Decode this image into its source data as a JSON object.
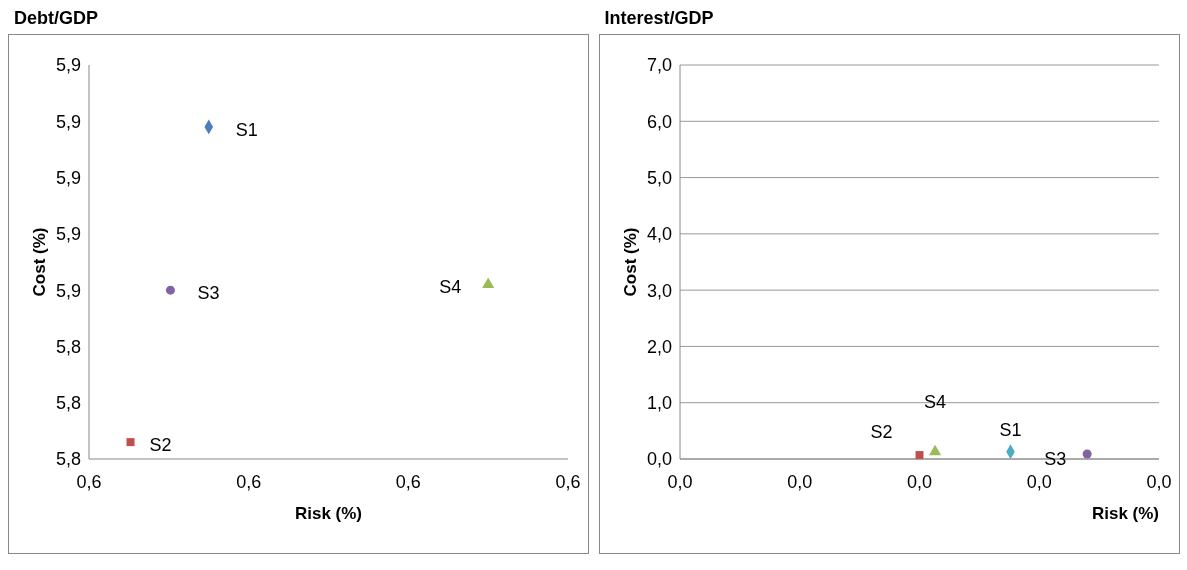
{
  "chart_data": [
    {
      "type": "scatter",
      "title": "Debt/GDP",
      "xlabel": "Risk (%)",
      "ylabel": "Cost (%)",
      "xlim": [
        0.6,
        0.63
      ],
      "ylim": [
        5.82,
        5.89
      ],
      "xticks": [
        {
          "value": 0.6,
          "label": "0,6"
        },
        {
          "value": 0.61,
          "label": "0,6"
        },
        {
          "value": 0.62,
          "label": "0,6"
        },
        {
          "value": 0.63,
          "label": "0,6"
        }
      ],
      "yticks": [
        {
          "value": 5.82,
          "label": "5,8"
        },
        {
          "value": 5.83,
          "label": "5,8"
        },
        {
          "value": 5.84,
          "label": "5,8"
        },
        {
          "value": 5.85,
          "label": "5,9"
        },
        {
          "value": 5.86,
          "label": "5,9"
        },
        {
          "value": 5.87,
          "label": "5,9"
        },
        {
          "value": 5.88,
          "label": "5,9"
        },
        {
          "value": 5.89,
          "label": "5,9"
        }
      ],
      "series": [
        {
          "name": "S1",
          "color": "#4a7ebb",
          "marker": "diamond",
          "x": [
            0.6075
          ],
          "values": [
            5.879
          ]
        },
        {
          "name": "S2",
          "color": "#c0504d",
          "marker": "square",
          "x": [
            0.6026
          ],
          "values": [
            5.823
          ]
        },
        {
          "name": "S3",
          "color": "#8064a2",
          "marker": "circle",
          "x": [
            0.6051
          ],
          "values": [
            5.85
          ]
        },
        {
          "name": "S4",
          "color": "#9bbb59",
          "marker": "triangle",
          "x": [
            0.625
          ],
          "values": [
            5.851
          ]
        }
      ]
    },
    {
      "type": "scatter",
      "title": "Interest/GDP",
      "xlabel": "Risk (%)",
      "ylabel": "Cost (%)",
      "xlim": [
        0,
        0.04
      ],
      "ylim": [
        0,
        7
      ],
      "grid": "y",
      "xticks": [
        {
          "value": 0,
          "label": "0,0"
        },
        {
          "value": 0.01,
          "label": "0,0"
        },
        {
          "value": 0.02,
          "label": "0,0"
        },
        {
          "value": 0.03,
          "label": "0,0"
        },
        {
          "value": 0.04,
          "label": "0,0"
        }
      ],
      "yticks": [
        {
          "value": 0,
          "label": "0,0"
        },
        {
          "value": 1,
          "label": "1,0"
        },
        {
          "value": 2,
          "label": "2,0"
        },
        {
          "value": 3,
          "label": "3,0"
        },
        {
          "value": 4,
          "label": "4,0"
        },
        {
          "value": 5,
          "label": "5,0"
        },
        {
          "value": 6,
          "label": "6,0"
        },
        {
          "value": 7,
          "label": "7,0"
        }
      ],
      "series": [
        {
          "name": "S1",
          "color": "#4bacc6",
          "marker": "diamond",
          "x": [
            0.0276
          ],
          "values": [
            0.13
          ]
        },
        {
          "name": "S2",
          "color": "#c0504d",
          "marker": "square",
          "x": [
            0.02
          ],
          "values": [
            0.07
          ]
        },
        {
          "name": "S3",
          "color": "#8064a2",
          "marker": "circle",
          "x": [
            0.034
          ],
          "values": [
            0.09
          ]
        },
        {
          "name": "S4",
          "color": "#9bbb59",
          "marker": "triangle",
          "x": [
            0.0213
          ],
          "values": [
            0.13
          ]
        }
      ]
    }
  ]
}
